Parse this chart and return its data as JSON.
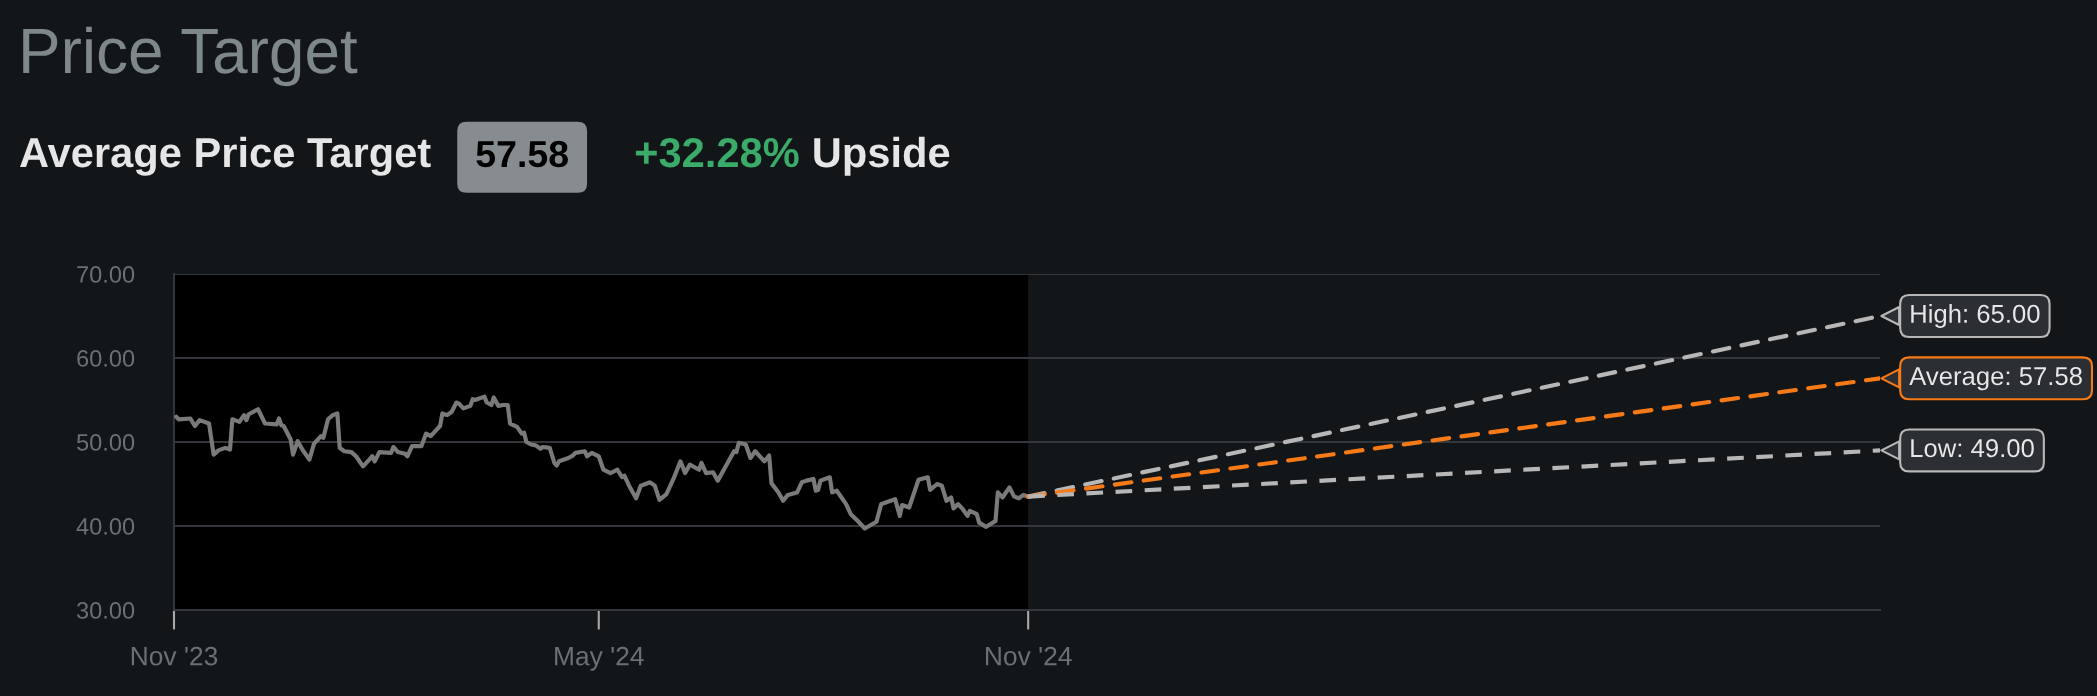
{
  "chart_data": {
    "type": "line",
    "title": "Price Target",
    "subtitle": "Average Price Target",
    "annotations": [
      "57.58",
      "+32.28%",
      "Upside",
      {
        "text": "High: 65.00",
        "x": "2025-11-01",
        "y": 65
      },
      {
        "text": "Average: 57.58",
        "x": "2025-11-01",
        "y": 57.58
      },
      {
        "text": "Low: 49.00",
        "x": "2025-11-01",
        "y": 49
      }
    ],
    "xlim": [
      "2023-11-01",
      "2025-11-01"
    ],
    "xticks": [
      {
        "value": "2023-11-01",
        "label": "Nov '23"
      },
      {
        "value": "2024-05-01",
        "label": "May '24"
      },
      {
        "value": "2024-11-01",
        "label": "Nov '24"
      }
    ],
    "ylim": [
      30,
      70
    ],
    "yticks": [
      {
        "value": 30,
        "label": "30.00"
      },
      {
        "value": 40,
        "label": "40.00"
      },
      {
        "value": 50,
        "label": "50.00"
      },
      {
        "value": 60,
        "label": "60.00"
      },
      {
        "value": 70,
        "label": "70.00"
      }
    ],
    "grid": "y",
    "bands": [
      {
        "axis": "x",
        "from": "2023-11-01",
        "to": "2024-11-01",
        "color": "#000000"
      }
    ],
    "series": [
      {
        "color": "#7a7a7a",
        "x": [
          "2023-11-02",
          "2023-11-03",
          "2023-11-08",
          "2023-11-10",
          "2023-11-12",
          "2023-11-16",
          "2023-11-18",
          "2023-11-20",
          "2023-11-23",
          "2023-11-25",
          "2023-11-26",
          "2023-11-29",
          "2023-12-01",
          "2023-12-02",
          "2023-12-03",
          "2023-12-07",
          "2023-12-10",
          "2023-12-15",
          "2023-12-16",
          "2023-12-17",
          "2023-12-18",
          "2023-12-21",
          "2023-12-22",
          "2023-12-24",
          "2023-12-26",
          "2023-12-29",
          "2023-12-31",
          "2024-01-03",
          "2024-01-04",
          "2024-01-06",
          "2024-01-08",
          "2024-01-10",
          "2024-01-11",
          "2024-01-13",
          "2024-01-16",
          "2024-01-18",
          "2024-01-20",
          "2024-01-21",
          "2024-01-23",
          "2024-01-25",
          "2024-01-26",
          "2024-01-28",
          "2024-02-02",
          "2024-02-03",
          "2024-02-05",
          "2024-02-08",
          "2024-02-09",
          "2024-02-11",
          "2024-02-15",
          "2024-02-17",
          "2024-02-19",
          "2024-02-23",
          "2024-02-24",
          "2024-02-26",
          "2024-02-28",
          "2024-03-01",
          "2024-03-02",
          "2024-03-04",
          "2024-03-07",
          "2024-03-08",
          "2024-03-09",
          "2024-03-13",
          "2024-03-14",
          "2024-03-16",
          "2024-03-17",
          "2024-03-19",
          "2024-03-21",
          "2024-03-23",
          "2024-03-24",
          "2024-03-27",
          "2024-03-29",
          "2024-03-30",
          "2024-03-31",
          "2024-04-02",
          "2024-04-04",
          "2024-04-06",
          "2024-04-07",
          "2024-04-10",
          "2024-04-12",
          "2024-04-13",
          "2024-04-14",
          "2024-04-18",
          "2024-04-20",
          "2024-04-21",
          "2024-04-25",
          "2024-04-26",
          "2024-04-28",
          "2024-05-01",
          "2024-05-03",
          "2024-05-06",
          "2024-05-09",
          "2024-05-11",
          "2024-05-12",
          "2024-05-14",
          "2024-05-17",
          "2024-05-19",
          "2024-05-23",
          "2024-05-25",
          "2024-05-27",
          "2024-05-30",
          "2024-06-02",
          "2024-06-05",
          "2024-06-07",
          "2024-06-09",
          "2024-06-13",
          "2024-06-14",
          "2024-06-16",
          "2024-06-19",
          "2024-06-21",
          "2024-06-24",
          "2024-06-28",
          "2024-06-29",
          "2024-06-30",
          "2024-07-03",
          "2024-07-05",
          "2024-07-07",
          "2024-07-11",
          "2024-07-13",
          "2024-07-14",
          "2024-07-17",
          "2024-07-19",
          "2024-07-21",
          "2024-07-25",
          "2024-07-27",
          "2024-07-29",
          "2024-08-01",
          "2024-08-02",
          "2024-08-03",
          "2024-08-04",
          "2024-08-08",
          "2024-08-09",
          "2024-08-11",
          "2024-08-15",
          "2024-08-17",
          "2024-08-20",
          "2024-08-23",
          "2024-08-28",
          "2024-08-30",
          "2024-09-01",
          "2024-09-05",
          "2024-09-07",
          "2024-09-08",
          "2024-09-11",
          "2024-09-15",
          "2024-09-19",
          "2024-09-20",
          "2024-09-23",
          "2024-09-25",
          "2024-09-27",
          "2024-09-29",
          "2024-09-30",
          "2024-10-02",
          "2024-10-04",
          "2024-10-06",
          "2024-10-07",
          "2024-10-10",
          "2024-10-11",
          "2024-10-14",
          "2024-10-18",
          "2024-10-19",
          "2024-10-21",
          "2024-10-24",
          "2024-10-26",
          "2024-10-28",
          "2024-10-30",
          "2024-11-01"
        ],
        "values": [
          53.0,
          52.7,
          52.8,
          51.9,
          52.6,
          52.2,
          48.5,
          49.0,
          49.3,
          49.1,
          52.7,
          52.4,
          53.2,
          52.6,
          53.3,
          53.9,
          52.2,
          52.1,
          52.8,
          52.0,
          51.9,
          50.3,
          48.5,
          50.1,
          49.1,
          47.9,
          49.8,
          50.7,
          50.5,
          52.7,
          53.2,
          53.4,
          49.3,
          48.9,
          48.8,
          48.3,
          47.5,
          47.1,
          47.7,
          48.3,
          47.7,
          48.8,
          48.7,
          49.4,
          48.8,
          48.6,
          48.3,
          49.5,
          49.5,
          51.0,
          50.7,
          51.9,
          53.4,
          53.2,
          53.6,
          54.7,
          54.6,
          54.0,
          54.3,
          55.1,
          55.0,
          55.4,
          54.7,
          54.4,
          55.3,
          54.3,
          54.4,
          54.4,
          52.2,
          51.8,
          51.0,
          51.1,
          50.0,
          49.7,
          49.6,
          49.2,
          49.4,
          49.3,
          47.5,
          47.2,
          47.7,
          48.1,
          48.4,
          48.7,
          48.9,
          48.3,
          48.7,
          48.3,
          46.7,
          46.3,
          46.7,
          45.8,
          46.0,
          44.8,
          43.3,
          44.8,
          45.2,
          44.8,
          43.1,
          43.8,
          45.6,
          47.7,
          46.3,
          47.3,
          46.7,
          47.5,
          46.3,
          46.4,
          45.4,
          46.9,
          48.9,
          48.8,
          49.9,
          49.7,
          48.1,
          48.9,
          47.7,
          48.4,
          45.1,
          44.0,
          43.0,
          43.7,
          44.0,
          45.2,
          45.4,
          45.6,
          44.2,
          44.3,
          45.4,
          45.8,
          44.0,
          44.2,
          42.6,
          41.4,
          40.6,
          39.7,
          40.5,
          42.6,
          42.8,
          43.2,
          41.2,
          42.5,
          42.2,
          45.5,
          45.8,
          44.3,
          45.0,
          44.8,
          43.0,
          43.4,
          42.1,
          42.6,
          42.0,
          41.2,
          41.8,
          41.4,
          40.4,
          39.9,
          40.6,
          44.0,
          43.4,
          44.6,
          43.5,
          43.3,
          43.7,
          43.5
        ]
      },
      {
        "color": "#b7b7b7",
        "line_style": "dashed",
        "x": [
          "2024-11-01",
          "2025-11-01"
        ],
        "values": [
          43.5,
          65
        ]
      },
      {
        "color": "#f87a17",
        "line_style": "dashed",
        "x": [
          "2024-11-01",
          "2025-11-01"
        ],
        "values": [
          43.5,
          57.58
        ]
      },
      {
        "color": "#b7b7b7",
        "line_style": "dashed",
        "x": [
          "2024-11-01",
          "2025-11-01"
        ],
        "values": [
          43.5,
          49
        ]
      }
    ]
  }
}
